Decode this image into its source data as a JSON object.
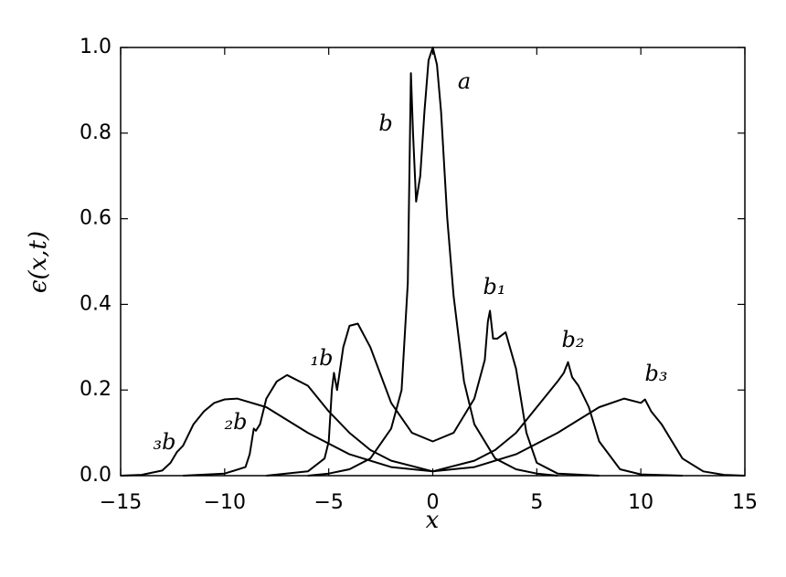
{
  "chart_data": {
    "type": "line",
    "xlabel": "x",
    "ylabel": "ϵ(x,t)",
    "xlim": [
      -15,
      15
    ],
    "ylim": [
      0,
      1
    ],
    "xticks": [
      {
        "value": -15,
        "label": "−15"
      },
      {
        "value": -10,
        "label": "−10"
      },
      {
        "value": -5,
        "label": "−5"
      },
      0,
      5,
      10,
      15
    ],
    "yticks": [
      {
        "value": 0,
        "label": "0.0"
      },
      {
        "value": 0.2,
        "label": "0.2"
      },
      {
        "value": 0.4,
        "label": "0.4"
      },
      {
        "value": 0.6,
        "label": "0.6"
      },
      {
        "value": 0.8,
        "label": "0.8"
      },
      {
        "value": 1,
        "label": "1.0"
      }
    ],
    "series": [
      {
        "color": "#000000",
        "x": [
          -6,
          -5,
          -4,
          -3,
          -2,
          -1.5,
          -1.2,
          -1.05,
          -0.95,
          -0.8,
          -0.6,
          -0.4,
          -0.2,
          0,
          0.2,
          0.4,
          0.7,
          1,
          1.5,
          2,
          3,
          4,
          5,
          6
        ],
        "values": [
          0,
          0.005,
          0.015,
          0.04,
          0.11,
          0.2,
          0.45,
          0.94,
          0.8,
          0.64,
          0.7,
          0.85,
          0.97,
          1.0,
          0.96,
          0.85,
          0.6,
          0.42,
          0.22,
          0.12,
          0.04,
          0.015,
          0.005,
          0
        ]
      },
      {
        "color": "#000000",
        "x": [
          -8,
          -6,
          -5.2,
          -5,
          -4.85,
          -4.75,
          -4.6,
          -4.3,
          -4,
          -3.6,
          -3,
          -2,
          -1,
          0,
          1,
          2,
          2.5,
          2.65,
          2.75,
          2.9,
          3.1,
          3.5,
          4,
          4.5,
          5,
          6,
          8
        ],
        "values": [
          0,
          0.01,
          0.04,
          0.08,
          0.2,
          0.24,
          0.2,
          0.3,
          0.35,
          0.355,
          0.3,
          0.17,
          0.1,
          0.08,
          0.1,
          0.18,
          0.27,
          0.36,
          0.385,
          0.32,
          0.32,
          0.335,
          0.25,
          0.1,
          0.03,
          0.005,
          0
        ]
      },
      {
        "color": "#000000",
        "x": [
          -12,
          -10,
          -9,
          -8.8,
          -8.6,
          -8.5,
          -8.3,
          -8,
          -7.5,
          -7,
          -6,
          -5,
          -4,
          -3,
          -2,
          0,
          2,
          3,
          4,
          5,
          6,
          6.3,
          6.5,
          6.7,
          7,
          7.5,
          8,
          9,
          10,
          12
        ],
        "values": [
          0,
          0.005,
          0.02,
          0.05,
          0.11,
          0.105,
          0.12,
          0.18,
          0.22,
          0.235,
          0.21,
          0.15,
          0.1,
          0.06,
          0.035,
          0.01,
          0.035,
          0.06,
          0.1,
          0.16,
          0.22,
          0.24,
          0.265,
          0.23,
          0.21,
          0.16,
          0.08,
          0.015,
          0.003,
          0
        ]
      },
      {
        "color": "#000000",
        "x": [
          -15,
          -14,
          -13,
          -12.6,
          -12.3,
          -12,
          -11.5,
          -11,
          -10.5,
          -10,
          -9.4,
          -8,
          -6,
          -4,
          -2,
          0,
          2,
          4,
          6,
          8,
          9.2,
          10,
          10.2,
          10.5,
          11,
          11.5,
          12,
          13,
          14,
          15
        ],
        "values": [
          0,
          0.002,
          0.012,
          0.03,
          0.055,
          0.07,
          0.12,
          0.15,
          0.17,
          0.178,
          0.18,
          0.16,
          0.1,
          0.05,
          0.02,
          0.01,
          0.02,
          0.05,
          0.1,
          0.16,
          0.18,
          0.17,
          0.178,
          0.15,
          0.12,
          0.08,
          0.04,
          0.01,
          0.002,
          0
        ]
      }
    ],
    "annotations": [
      "a",
      "b",
      "b₁",
      "₁b",
      "b₂",
      "₂b",
      "b₃",
      "₃b"
    ]
  }
}
